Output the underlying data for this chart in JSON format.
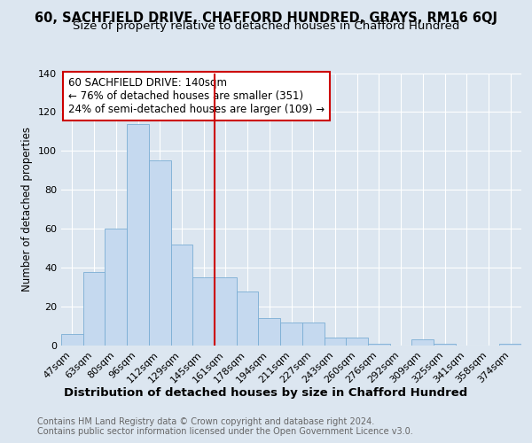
{
  "title": "60, SACHFIELD DRIVE, CHAFFORD HUNDRED, GRAYS, RM16 6QJ",
  "subtitle": "Size of property relative to detached houses in Chafford Hundred",
  "xlabel": "Distribution of detached houses by size in Chafford Hundred",
  "ylabel": "Number of detached properties",
  "categories": [
    "47sqm",
    "63sqm",
    "80sqm",
    "96sqm",
    "112sqm",
    "129sqm",
    "145sqm",
    "161sqm",
    "178sqm",
    "194sqm",
    "211sqm",
    "227sqm",
    "243sqm",
    "260sqm",
    "276sqm",
    "292sqm",
    "309sqm",
    "325sqm",
    "341sqm",
    "358sqm",
    "374sqm"
  ],
  "values": [
    6,
    38,
    60,
    114,
    95,
    52,
    35,
    35,
    28,
    14,
    12,
    12,
    4,
    4,
    1,
    0,
    3,
    1,
    0,
    0,
    1
  ],
  "bar_color": "#c5d9ef",
  "bar_edge_color": "#7aadd4",
  "vline_x": 6.5,
  "vline_color": "#cc0000",
  "annotation_title": "60 SACHFIELD DRIVE: 140sqm",
  "annotation_line1": "← 76% of detached houses are smaller (351)",
  "annotation_line2": "24% of semi-detached houses are larger (109) →",
  "annotation_box_color": "#cc0000",
  "ylim": [
    0,
    140
  ],
  "yticks": [
    0,
    20,
    40,
    60,
    80,
    100,
    120,
    140
  ],
  "footer1": "Contains HM Land Registry data © Crown copyright and database right 2024.",
  "footer2": "Contains public sector information licensed under the Open Government Licence v3.0.",
  "background_color": "#dce6f0",
  "plot_bg_color": "#dce6f0",
  "title_fontsize": 10.5,
  "subtitle_fontsize": 9.5,
  "xlabel_fontsize": 9.5,
  "ylabel_fontsize": 8.5,
  "tick_fontsize": 8,
  "annotation_fontsize": 8.5,
  "footer_fontsize": 7,
  "grid_color": "#ffffff"
}
